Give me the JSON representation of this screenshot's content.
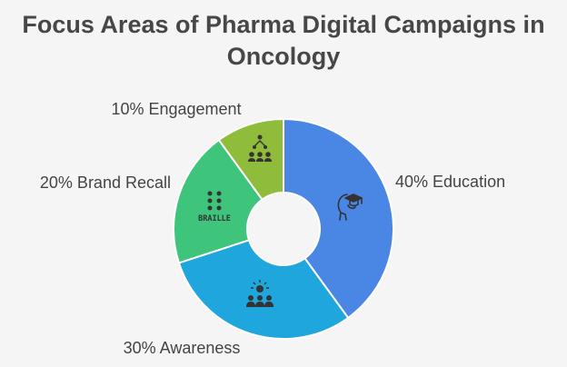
{
  "chart_data": {
    "type": "pie",
    "variant": "donut",
    "title_line1": "Focus Areas of Pharma Digital Campaigns in",
    "title_line2": "Oncology",
    "slices": [
      {
        "label": "40% Education",
        "value": 40,
        "color": "#4a86e3",
        "icon": "head-graduation-cap-icon"
      },
      {
        "label": "30% Awareness",
        "value": 30,
        "color": "#1fa6dc",
        "icon": "crowd-spotlight-icon"
      },
      {
        "label": "20% Brand Recall",
        "value": 20,
        "color": "#3fc47c",
        "icon": "braille-icon"
      },
      {
        "label": "10% Engagement",
        "value": 10,
        "color": "#8fbc3a",
        "icon": "connected-people-icon"
      }
    ],
    "legend": "none",
    "icon_text": {
      "braille": "BRAILLE"
    }
  }
}
